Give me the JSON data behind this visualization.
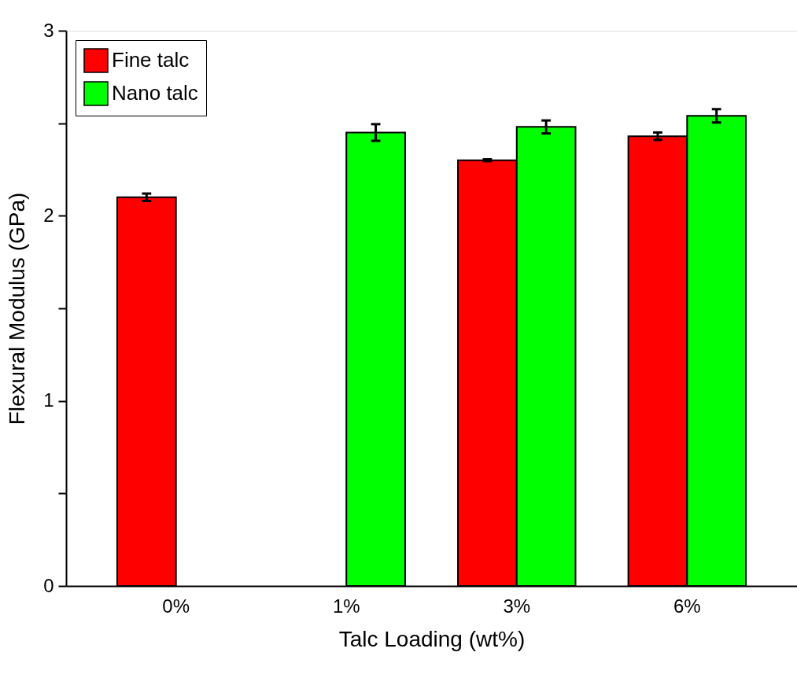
{
  "chart_data": {
    "type": "bar",
    "xlabel": "Talc Loading (wt%)",
    "ylabel": "Flexural Modulus (GPa)",
    "categories": [
      "0%",
      "1%",
      "3%",
      "6%"
    ],
    "series": [
      {
        "name": "Fine talc",
        "color": "#ff0000",
        "values": [
          2.1,
          null,
          2.3,
          2.43
        ],
        "errors": [
          0.02,
          null,
          0.005,
          0.02
        ]
      },
      {
        "name": "Nano talc",
        "color": "#00ff00",
        "values": [
          null,
          2.45,
          2.48,
          2.54
        ],
        "errors": [
          null,
          0.045,
          0.035,
          0.036
        ]
      }
    ],
    "ylim": [
      0,
      3
    ],
    "yticks": [
      0,
      {
        "value": 0.5,
        "label": null
      },
      1,
      {
        "value": 1.5,
        "label": null
      },
      2,
      {
        "value": 2.5,
        "label": null
      },
      3
    ],
    "grid": false,
    "legend": "top left"
  }
}
